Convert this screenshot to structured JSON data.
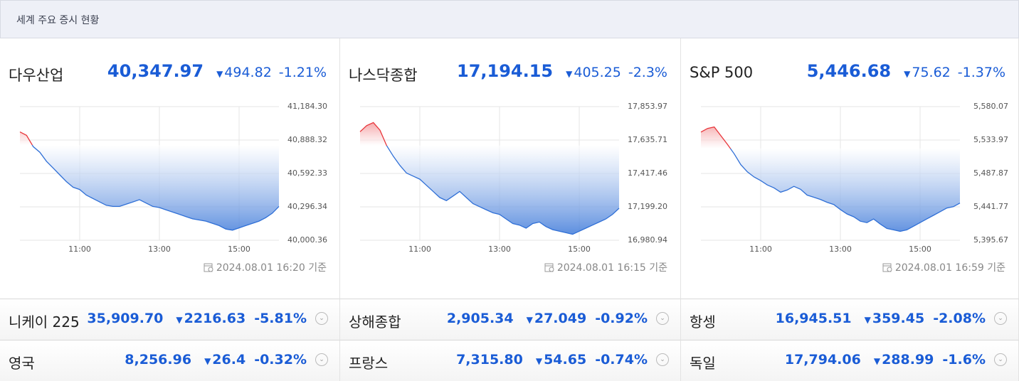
{
  "header": {
    "title": "세계 주요 증시 현황"
  },
  "panels": [
    {
      "name": "다우산업",
      "price": "40,347.97",
      "change": "494.82",
      "pct": "-1.21%",
      "updated": "2024.08.01 16:20 기준"
    },
    {
      "name": "나스닥종합",
      "price": "17,194.15",
      "change": "405.25",
      "pct": "-2.3%",
      "updated": "2024.08.01 16:15 기준"
    },
    {
      "name": "S&P 500",
      "price": "5,446.68",
      "change": "75.62",
      "pct": "-1.37%",
      "updated": "2024.08.01 16:59 기준"
    }
  ],
  "list": [
    {
      "name": "니케이 225",
      "price": "35,909.70",
      "change": "2216.63",
      "pct": "-5.81%"
    },
    {
      "name": "상해종합",
      "price": "2,905.34",
      "change": "27.049",
      "pct": "-0.92%"
    },
    {
      "name": "항셍",
      "price": "16,945.51",
      "change": "359.45",
      "pct": "-2.08%"
    },
    {
      "name": "영국",
      "price": "8,256.96",
      "change": "26.4",
      "pct": "-0.32%"
    },
    {
      "name": "프랑스",
      "price": "7,315.80",
      "change": "54.65",
      "pct": "-0.74%"
    },
    {
      "name": "독일",
      "price": "17,794.06",
      "change": "288.99",
      "pct": "-1.6%"
    }
  ],
  "chart_data": [
    {
      "type": "line",
      "up_color": "#e8353a",
      "down_color": "#2f6fd6",
      "grid": true,
      "x": [
        "09:30",
        "09:40",
        "09:50",
        "10:00",
        "10:10",
        "10:20",
        "10:30",
        "10:40",
        "10:50",
        "11:00",
        "11:10",
        "11:20",
        "11:30",
        "11:40",
        "11:50",
        "12:00",
        "12:10",
        "12:20",
        "12:30",
        "12:40",
        "12:50",
        "13:00",
        "13:10",
        "13:20",
        "13:30",
        "13:40",
        "13:50",
        "14:00",
        "14:10",
        "14:20",
        "14:30",
        "14:40",
        "14:50",
        "15:00",
        "15:10",
        "15:20",
        "15:30",
        "15:40",
        "15:50",
        "16:00"
      ],
      "values": [
        40960,
        40930,
        40830,
        40780,
        40700,
        40640,
        40580,
        40520,
        40470,
        40450,
        40400,
        40370,
        40340,
        40310,
        40300,
        40300,
        40320,
        40340,
        40360,
        40330,
        40300,
        40290,
        40270,
        40250,
        40230,
        40210,
        40190,
        40180,
        40170,
        40150,
        40130,
        40100,
        40090,
        40110,
        40130,
        40150,
        40170,
        40200,
        40240,
        40300
      ],
      "xticks": [
        "11:00",
        "13:00",
        "15:00"
      ],
      "ylim": [
        40000.36,
        41184.3
      ],
      "yticks": [
        {
          "value": 40000.36,
          "label": "40,000.36"
        },
        {
          "value": 40296.34,
          "label": "40,296.34"
        },
        {
          "value": 40592.33,
          "label": "40,592.33"
        },
        {
          "value": 40888.32,
          "label": "40,888.32"
        },
        {
          "value": 41184.3,
          "label": "41,184.30"
        }
      ]
    },
    {
      "type": "line",
      "up_color": "#e8353a",
      "down_color": "#2f6fd6",
      "grid": true,
      "x": [
        "09:30",
        "09:40",
        "09:50",
        "10:00",
        "10:10",
        "10:20",
        "10:30",
        "10:40",
        "10:50",
        "11:00",
        "11:10",
        "11:20",
        "11:30",
        "11:40",
        "11:50",
        "12:00",
        "12:10",
        "12:20",
        "12:30",
        "12:40",
        "12:50",
        "13:00",
        "13:10",
        "13:20",
        "13:30",
        "13:40",
        "13:50",
        "14:00",
        "14:10",
        "14:20",
        "14:30",
        "14:40",
        "14:50",
        "15:00",
        "15:10",
        "15:20",
        "15:30",
        "15:40",
        "15:50",
        "16:00"
      ],
      "values": [
        17690,
        17730,
        17750,
        17700,
        17600,
        17530,
        17470,
        17420,
        17400,
        17380,
        17340,
        17300,
        17260,
        17240,
        17270,
        17300,
        17260,
        17220,
        17200,
        17180,
        17160,
        17150,
        17120,
        17090,
        17080,
        17060,
        17090,
        17100,
        17070,
        17050,
        17040,
        17030,
        17020,
        17040,
        17060,
        17080,
        17100,
        17120,
        17150,
        17190
      ],
      "xticks": [
        "11:00",
        "13:00",
        "15:00"
      ],
      "ylim": [
        16980.94,
        17853.97
      ],
      "yticks": [
        {
          "value": 16980.94,
          "label": "16,980.94"
        },
        {
          "value": 17199.2,
          "label": "17,199.20"
        },
        {
          "value": 17417.46,
          "label": "17,417.46"
        },
        {
          "value": 17635.71,
          "label": "17,635.71"
        },
        {
          "value": 17853.97,
          "label": "17,853.97"
        }
      ]
    },
    {
      "type": "line",
      "up_color": "#e8353a",
      "down_color": "#2f6fd6",
      "grid": true,
      "x": [
        "09:30",
        "09:40",
        "09:50",
        "10:00",
        "10:10",
        "10:20",
        "10:30",
        "10:40",
        "10:50",
        "11:00",
        "11:10",
        "11:20",
        "11:30",
        "11:40",
        "11:50",
        "12:00",
        "12:10",
        "12:20",
        "12:30",
        "12:40",
        "12:50",
        "13:00",
        "13:10",
        "13:20",
        "13:30",
        "13:40",
        "13:50",
        "14:00",
        "14:10",
        "14:20",
        "14:30",
        "14:40",
        "14:50",
        "15:00",
        "15:10",
        "15:20",
        "15:30",
        "15:40",
        "15:50",
        "16:00"
      ],
      "values": [
        5545,
        5550,
        5552,
        5540,
        5528,
        5515,
        5500,
        5490,
        5483,
        5478,
        5472,
        5468,
        5462,
        5465,
        5470,
        5466,
        5458,
        5455,
        5452,
        5448,
        5445,
        5438,
        5432,
        5428,
        5422,
        5420,
        5425,
        5418,
        5412,
        5410,
        5408,
        5410,
        5415,
        5420,
        5425,
        5430,
        5435,
        5440,
        5442,
        5447
      ],
      "xticks": [
        "11:00",
        "13:00",
        "15:00"
      ],
      "ylim": [
        5395.67,
        5580.07
      ],
      "yticks": [
        {
          "value": 5395.67,
          "label": "5,395.67"
        },
        {
          "value": 5441.77,
          "label": "5,441.77"
        },
        {
          "value": 5487.87,
          "label": "5,487.87"
        },
        {
          "value": 5533.97,
          "label": "5,533.97"
        },
        {
          "value": 5580.07,
          "label": "5,580.07"
        }
      ]
    }
  ]
}
